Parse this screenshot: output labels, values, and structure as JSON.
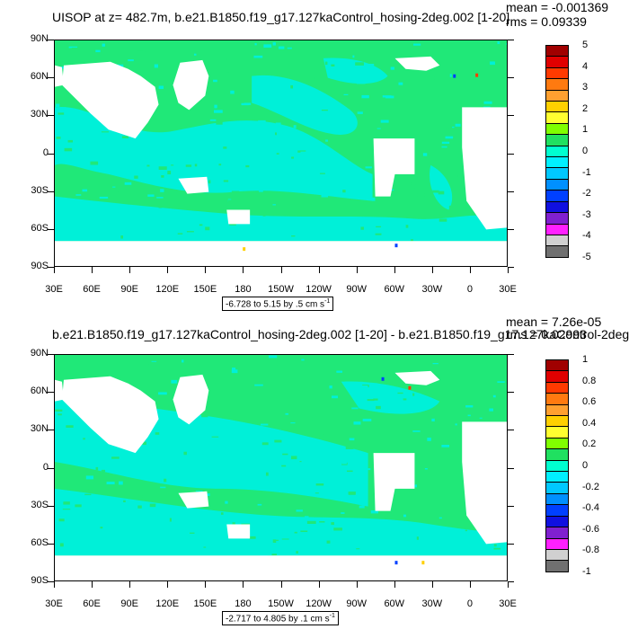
{
  "panels": [
    {
      "id": "top",
      "title": "UISOP at z= 482.7m, b.e21.B1850.f19_g17.127kaControl_hosing-2deg.002 [1-20]",
      "mean": "mean = -0.001369",
      "rms": "rms = 0.09339",
      "range": "-6.728 to 5.15 by .5 cm s",
      "range_sup": "-1",
      "colorbar_labels": [
        "5",
        "4",
        "3",
        "2",
        "1",
        "0",
        "-1",
        "-2",
        "-3",
        "-4",
        "-5"
      ]
    },
    {
      "id": "bottom",
      "title": "b.e21.B1850.f19_g17.127kaControl_hosing-2deg.002 [1-20] - b.e21.B1850.f19_g17.127kaControl-2deg.",
      "mean": "mean = 7.26e-05",
      "rms": "rms = 0.02993",
      "range": "-2.717 to 4.805 by .1 cm s",
      "range_sup": "-1",
      "colorbar_labels": [
        "1",
        "0.8",
        "0.6",
        "0.4",
        "0.2",
        "0",
        "-0.2",
        "-0.4",
        "-0.6",
        "-0.8",
        "-1"
      ]
    }
  ],
  "lat_labels": [
    "90N",
    "60N",
    "30N",
    "0",
    "30S",
    "60S",
    "90S"
  ],
  "lon_labels": [
    "30E",
    "60E",
    "90E",
    "120E",
    "150E",
    "180",
    "150W",
    "120W",
    "90W",
    "60W",
    "30W",
    "0",
    "30E"
  ],
  "colorbar_colors": [
    "#a00000",
    "#e00000",
    "#ff3a00",
    "#ff7a10",
    "#ffa030",
    "#ffd000",
    "#ffff30",
    "#80ff00",
    "#20e060",
    "#00ffd0",
    "#00f0ff",
    "#00c8ff",
    "#0090ff",
    "#0040ff",
    "#1010e0",
    "#8020d0",
    "#ff20ff",
    "#d0d0d0",
    "#707070"
  ]
}
